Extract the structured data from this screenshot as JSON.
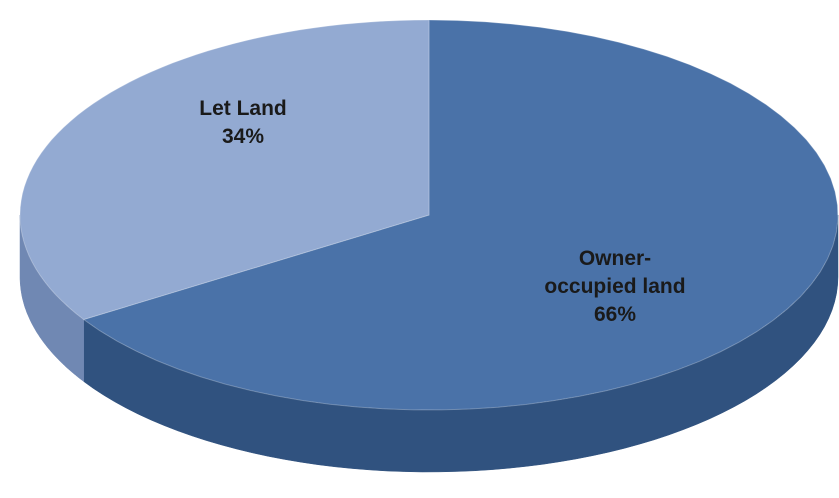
{
  "chart_data": {
    "type": "pie",
    "categories": [
      "Owner-occupied land",
      "Let Land"
    ],
    "values": [
      66,
      34
    ],
    "value_labels": [
      "66%",
      "34%"
    ],
    "colors": [
      "#4a72a8",
      "#93aad2"
    ],
    "side_colors": [
      "#30527f",
      "#7088b3"
    ]
  }
}
